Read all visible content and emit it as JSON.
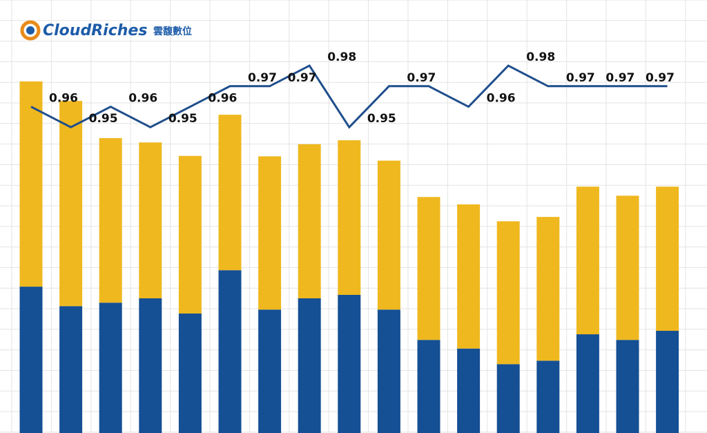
{
  "logo": {
    "brand": "CloudRiches",
    "subtitle": "雲馥數位"
  },
  "chart_data": {
    "type": "bar-line",
    "ylim": [
      0,
      100
    ],
    "y2lim": [
      0.801,
      1.012
    ],
    "series": [
      {
        "name": null,
        "type": "bar",
        "color": "#154f94",
        "values": [
          33.8,
          29.3,
          30.1,
          31.1,
          27.6,
          37.6,
          28.5,
          31.1,
          31.9,
          28.5,
          21.5,
          19.5,
          15.9,
          16.7,
          22.8,
          21.5,
          23.6
        ]
      },
      {
        "name": null,
        "type": "bar",
        "color": "#efb81f",
        "values": [
          47.4,
          47.4,
          38.0,
          36.0,
          36.4,
          35.9,
          35.4,
          35.6,
          35.7,
          34.4,
          33.0,
          33.3,
          33.0,
          33.2,
          34.1,
          33.3,
          33.3
        ]
      },
      {
        "name": null,
        "type": "line",
        "axis": "y2",
        "color": "#1f4e8c",
        "values": [
          0.96,
          0.95,
          0.96,
          0.95,
          0.96,
          0.97,
          0.97,
          0.98,
          0.95,
          0.97,
          0.97,
          0.96,
          0.98,
          0.97,
          0.97,
          0.97,
          0.97
        ],
        "value_labels": [
          "0.96",
          "0.95",
          "0.96",
          "0.95",
          "0.96",
          "0.97",
          "0.97",
          "0.98",
          "0.95",
          "0.97",
          null,
          "0.96",
          "0.98",
          "0.97",
          "0.97",
          "0.97",
          null
        ]
      }
    ]
  }
}
